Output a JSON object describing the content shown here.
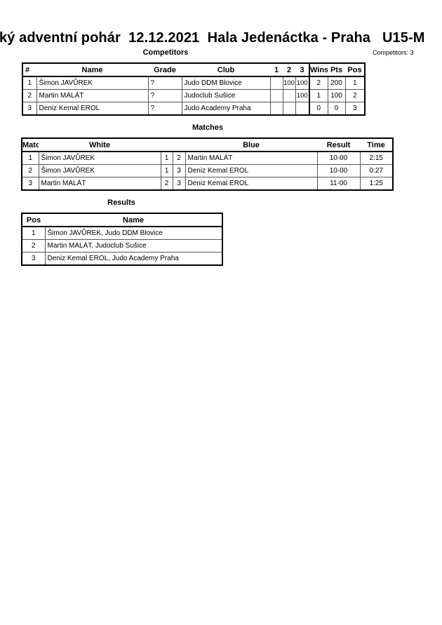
{
  "title": "ký adventní pohár  12.12.2021  Hala Jedenáctka - Praha   U15-M",
  "competitors": {
    "heading": "Competitors",
    "count_label": "Competitors: 3",
    "headers": [
      "#",
      "Name",
      "Grade",
      "Club",
      "1",
      "2",
      "3",
      "Wins",
      "Pts",
      "Pos"
    ],
    "rows": [
      [
        "1",
        "Šimon JAVŮREK",
        "?",
        "Judo DDM Blovice",
        "",
        "100",
        "100",
        "2",
        "200",
        "1"
      ],
      [
        "2",
        "Martin MALÁT",
        "?",
        "Judoclub Sušice",
        "",
        "",
        "100",
        "1",
        "100",
        "2"
      ],
      [
        "3",
        "Deniz Kemal EROL",
        "?",
        "Judo Academy Praha",
        "",
        "",
        "",
        "0",
        "0",
        "3"
      ]
    ]
  },
  "matches": {
    "heading": "Matches",
    "headers": [
      "Match",
      "White",
      "",
      "",
      "Blue",
      "Result",
      "Time"
    ],
    "rows": [
      [
        "1",
        "Šimon JAVŮREK",
        "1",
        "2",
        "Martin MALÁT",
        "10-00",
        "2:15"
      ],
      [
        "2",
        "Šimon JAVŮREK",
        "1",
        "3",
        "Deniz Kemal EROL",
        "10-00",
        "0:27"
      ],
      [
        "3",
        "Martin MALÁT",
        "2",
        "3",
        "Deniz Kemal EROL",
        "11-00",
        "1:25"
      ]
    ]
  },
  "results": {
    "heading": "Results",
    "headers": [
      "Pos",
      "Name"
    ],
    "rows": [
      [
        "1",
        "Šimon JAVŮREK, Judo DDM Blovice"
      ],
      [
        "2",
        "Martin MALÁT, Judoclub Sušice"
      ],
      [
        "3",
        "Deniz Kemal EROL, Judo Academy Praha"
      ]
    ]
  }
}
